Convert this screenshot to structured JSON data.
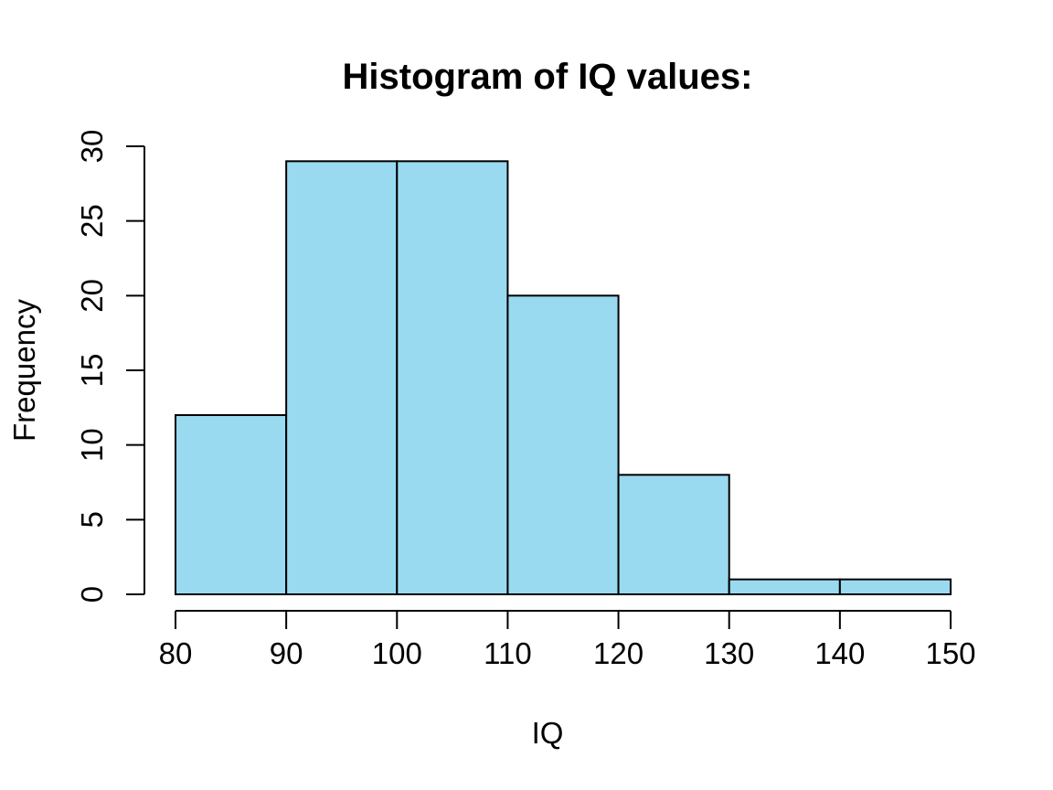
{
  "chart_data": {
    "type": "bar",
    "subtype": "histogram",
    "title": "Histogram of IQ values:",
    "xlabel": "IQ",
    "ylabel": "Frequency",
    "bin_breaks": [
      80,
      90,
      100,
      110,
      120,
      130,
      140,
      150
    ],
    "categories": [
      "80-90",
      "90-100",
      "100-110",
      "110-120",
      "120-130",
      "130-140",
      "140-150"
    ],
    "values": [
      12,
      29,
      29,
      20,
      8,
      1,
      1
    ],
    "xlim": [
      80,
      150
    ],
    "ylim": [
      0,
      30
    ],
    "x_ticks": [
      "80",
      "90",
      "100",
      "110",
      "120",
      "130",
      "140",
      "150"
    ],
    "y_ticks": [
      "0",
      "5",
      "10",
      "15",
      "20",
      "25",
      "30"
    ],
    "bar_fill": "#9ADAF0",
    "bar_border": "#000000",
    "axis_color": "#000000",
    "background": "#FFFFFF",
    "grid": false,
    "legend": false
  }
}
